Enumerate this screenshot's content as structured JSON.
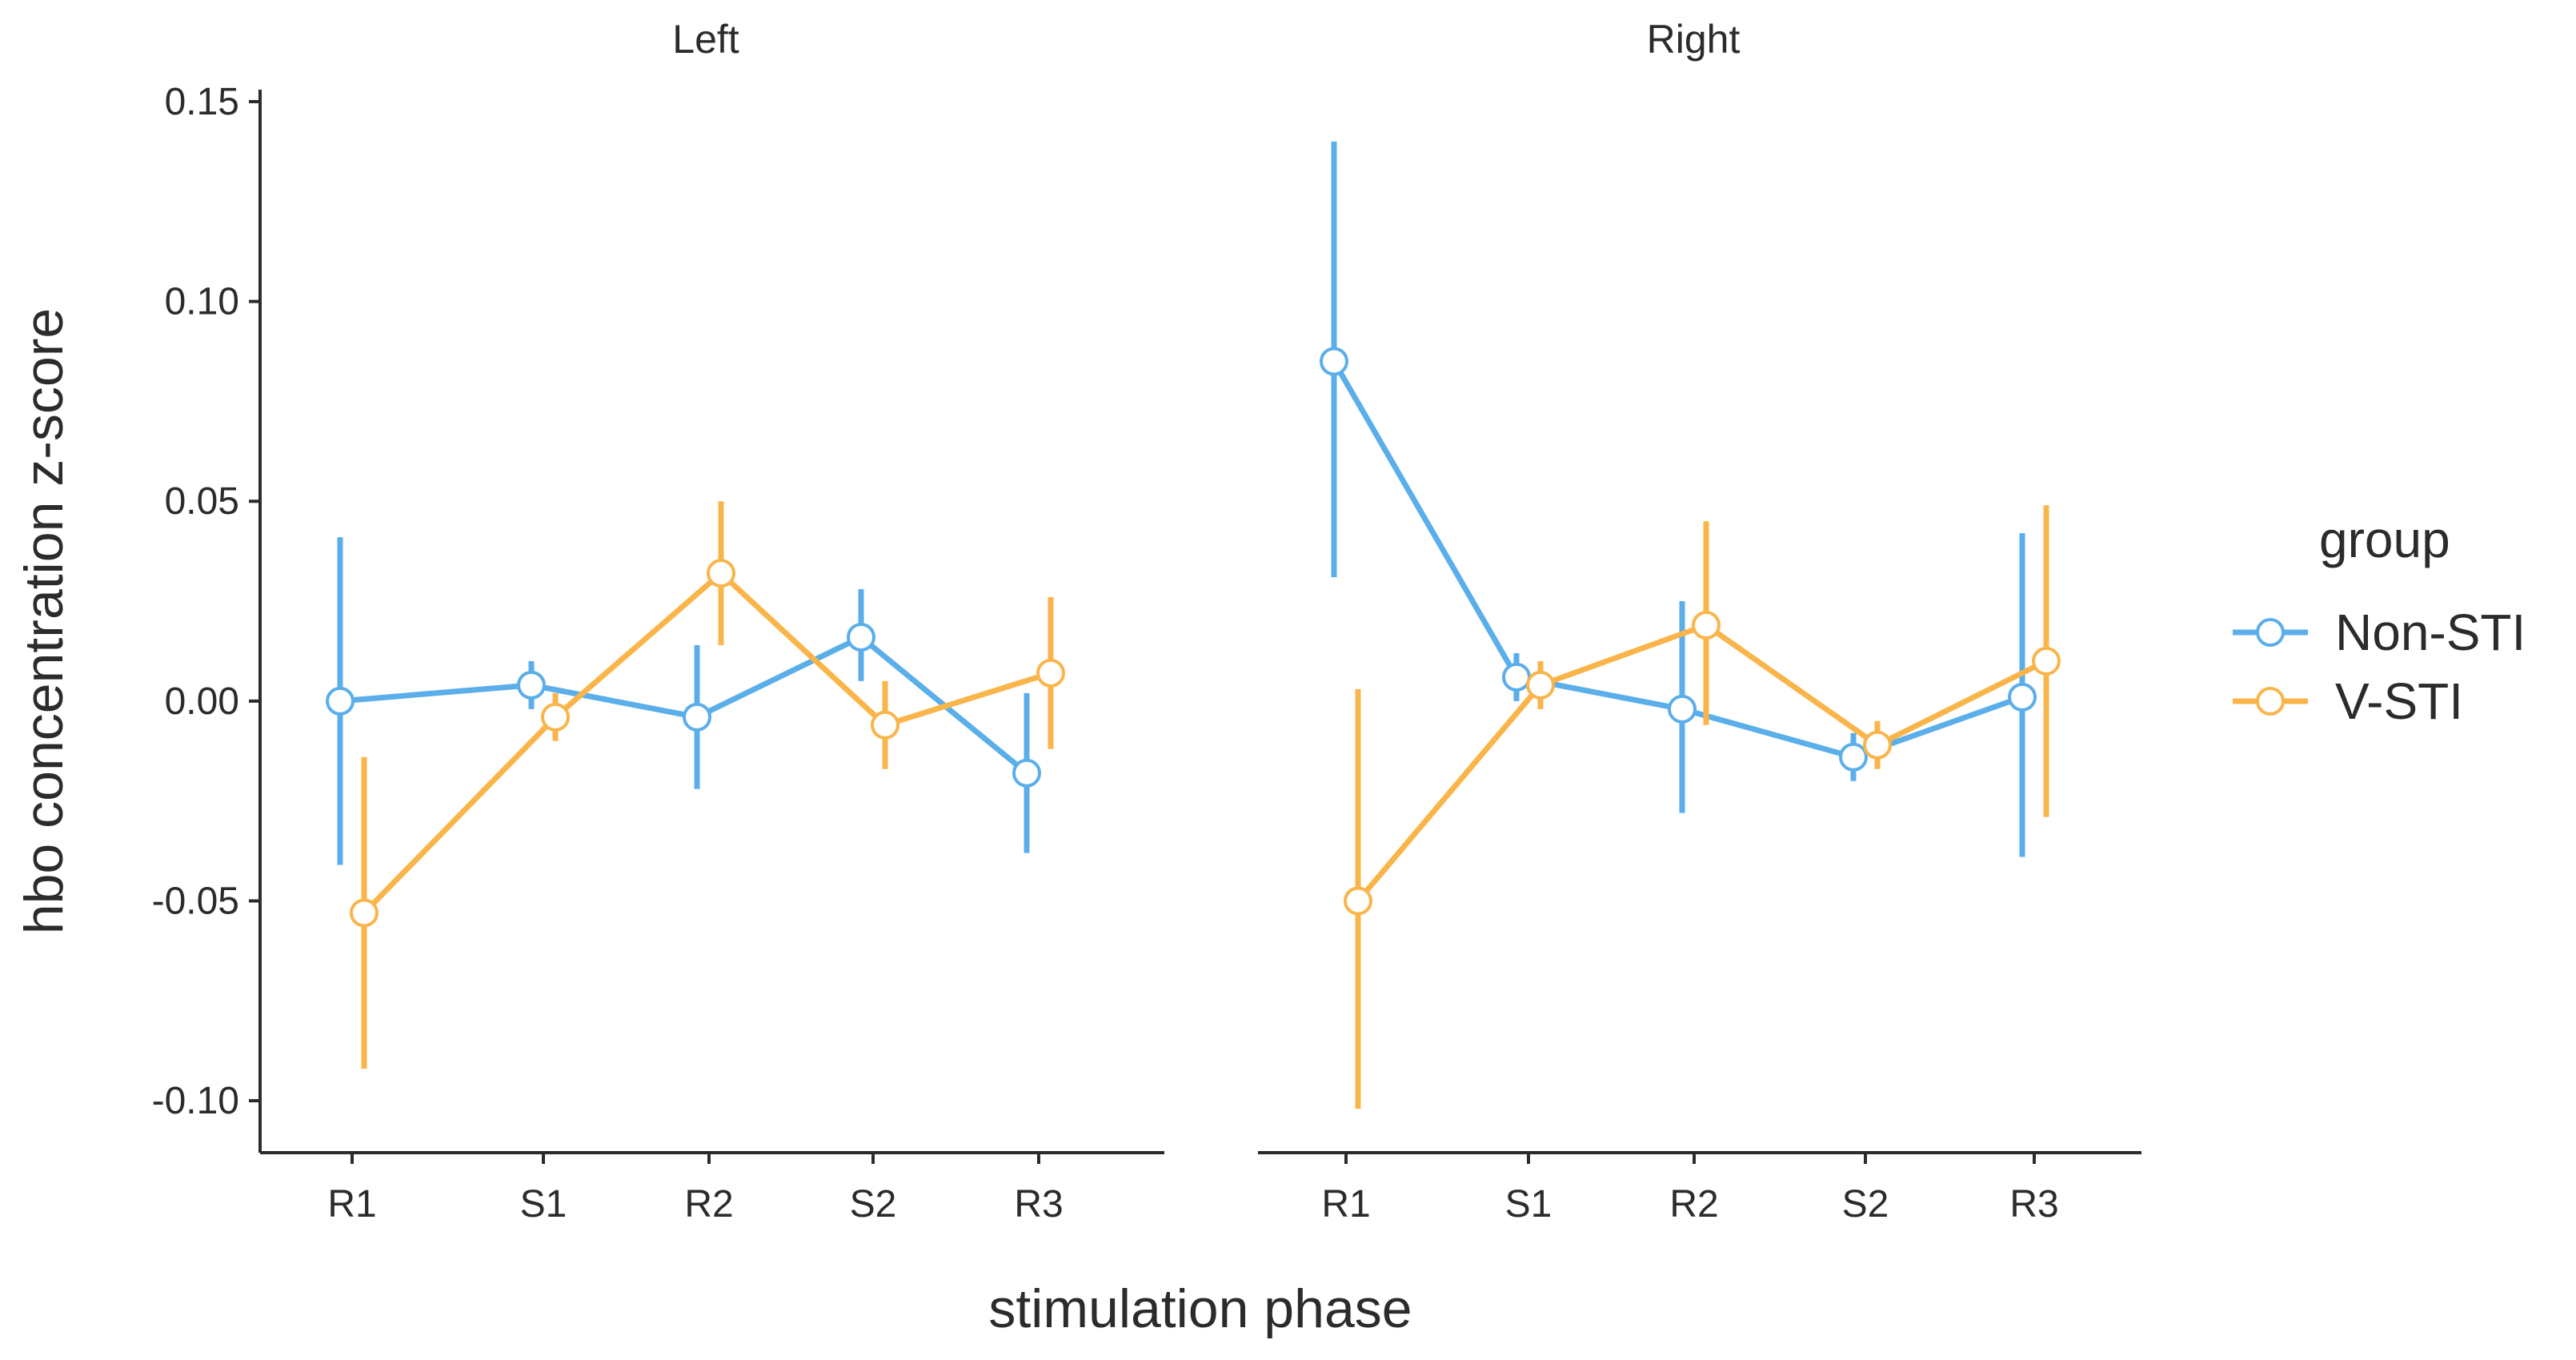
{
  "chart_data": {
    "type": "line",
    "ylabel": "hbo concentration z-score",
    "xlabel": "stimulation phase",
    "ylim": [
      -0.113,
      0.153
    ],
    "yticks": [
      0.15,
      0.1,
      0.05,
      0.0,
      -0.05,
      -0.1
    ],
    "ytick_labels": [
      "0.15",
      "0.10",
      "0.05",
      "0.00",
      "-0.05",
      "-0.10"
    ],
    "categories": [
      "R1",
      "S1",
      "R2",
      "S2",
      "R3"
    ],
    "legend": {
      "title": "group",
      "position": "right"
    },
    "series_styles": [
      {
        "name": "Non-STI",
        "color": "#5aaeea"
      },
      {
        "name": "V-STI",
        "color": "#f9b54a"
      }
    ],
    "panels": [
      {
        "title": "Left",
        "series": [
          {
            "name": "Non-STI",
            "values": [
              0.0,
              0.004,
              -0.004,
              0.016,
              -0.018
            ],
            "lower": [
              -0.041,
              -0.002,
              -0.022,
              0.005,
              -0.038
            ],
            "upper": [
              0.041,
              0.01,
              0.014,
              0.028,
              0.002
            ]
          },
          {
            "name": "V-STI",
            "values": [
              -0.053,
              -0.004,
              0.032,
              -0.006,
              0.007
            ],
            "lower": [
              -0.092,
              -0.01,
              0.014,
              -0.017,
              -0.012
            ],
            "upper": [
              -0.014,
              0.002,
              0.05,
              0.005,
              0.026
            ]
          }
        ]
      },
      {
        "title": "Right",
        "series": [
          {
            "name": "Non-STI",
            "values": [
              0.085,
              0.006,
              -0.002,
              -0.014,
              0.001
            ],
            "lower": [
              0.031,
              0.0,
              -0.028,
              -0.02,
              -0.039
            ],
            "upper": [
              0.14,
              0.012,
              0.025,
              -0.008,
              0.042
            ]
          },
          {
            "name": "V-STI",
            "values": [
              -0.05,
              0.004,
              0.019,
              -0.011,
              0.01
            ],
            "lower": [
              -0.102,
              -0.002,
              -0.006,
              -0.017,
              -0.029
            ],
            "upper": [
              0.003,
              0.01,
              0.045,
              -0.005,
              0.049
            ]
          }
        ]
      }
    ]
  }
}
